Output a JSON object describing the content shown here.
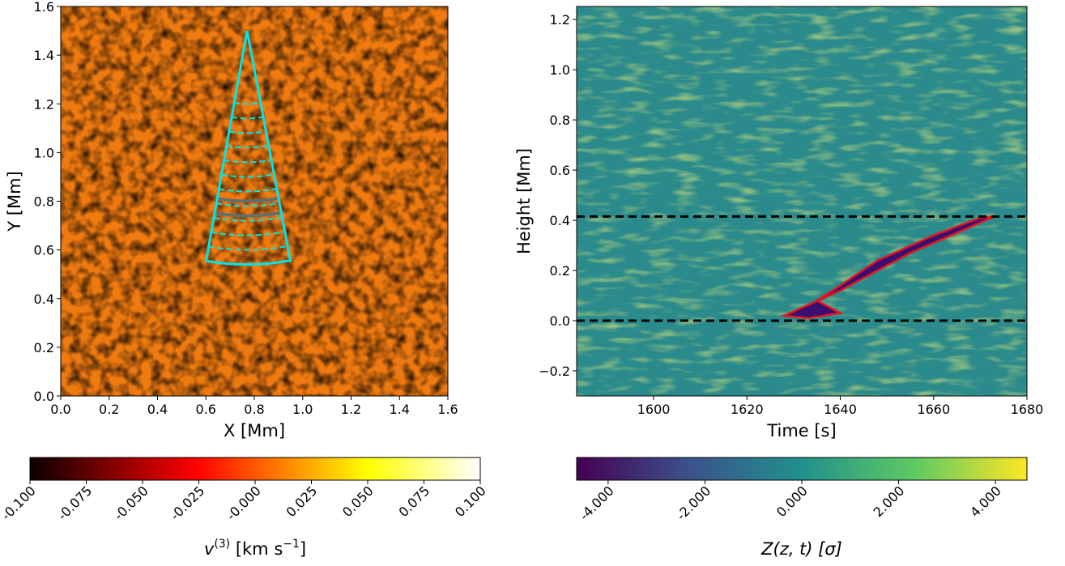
{
  "chart_data": [
    {
      "type": "heatmap",
      "colormap": "hot",
      "xlabel": "X [Mm]",
      "ylabel": "Y [Mm]",
      "xlim": [
        0,
        1.6
      ],
      "ylim": [
        0,
        1.6
      ],
      "xticks": [
        {
          "value": 0,
          "label": "0.0"
        },
        0.2,
        0.4,
        0.6,
        0.8,
        {
          "value": 1,
          "label": "1.0"
        },
        1.2,
        1.4,
        1.6
      ],
      "yticks": [
        {
          "value": 0,
          "label": "0.0"
        },
        0.2,
        0.4,
        0.6,
        0.8,
        {
          "value": 1,
          "label": "1.0"
        },
        1.2,
        1.4,
        1.6
      ],
      "wedge": {
        "color": "#00e5e5",
        "apex": [
          0.77,
          1.5
        ],
        "left": [
          0.6,
          0.55
        ],
        "right": [
          0.95,
          0.55
        ],
        "outer_radius": 0.96,
        "dashed_radii": [
          0.3,
          0.36,
          0.42,
          0.48,
          0.54,
          0.6,
          0.66,
          0.72,
          0.78,
          0.84,
          0.9
        ],
        "gray_radii": [
          0.7,
          0.76
        ]
      },
      "colorbar": {
        "lim": [
          -0.1,
          0.1
        ],
        "ticks": [
          {
            "value": -0.1,
            "label": "-0.100"
          },
          {
            "value": -0.075,
            "label": "-0.075"
          },
          {
            "value": -0.05,
            "label": "-0.050"
          },
          {
            "value": -0.025,
            "label": "-0.025"
          },
          {
            "value": 0,
            "label": "-0.000"
          },
          {
            "value": 0.025,
            "label": "0.025"
          },
          {
            "value": 0.05,
            "label": "0.050"
          },
          {
            "value": 0.075,
            "label": "0.075"
          },
          {
            "value": 0.1,
            "label": "0.100"
          }
        ],
        "label_parts": [
          "v",
          "(3)",
          " [km s",
          "−1",
          "]"
        ]
      }
    },
    {
      "type": "heatmap",
      "colormap": "viridis",
      "xlabel": "Time [s]",
      "ylabel": "Height [Mm]",
      "xlim": [
        1583.5,
        1680
      ],
      "ylim": [
        -0.3,
        1.252
      ],
      "xticks": [
        1600,
        1620,
        1640,
        1660,
        1680
      ],
      "yticks": [
        {
          "value": -0.2,
          "label": "−0.2"
        },
        {
          "value": 0,
          "label": "0.0"
        },
        0.2,
        0.4,
        0.6,
        0.8,
        {
          "value": 1,
          "label": "1.0"
        },
        1.2
      ],
      "hlines": [
        0,
        0.415
      ],
      "contour": {
        "color": "#e8141c",
        "x": [
          1628,
          1640,
          1655,
          1665,
          1673,
          1670,
          1660,
          1648,
          1640,
          1635,
          1640,
          1633,
          1628
        ],
        "y": [
          0.02,
          0.12,
          0.27,
          0.35,
          0.415,
          0.41,
          0.34,
          0.24,
          0.14,
          0.08,
          0.03,
          0.01,
          0.02
        ]
      },
      "colorbar": {
        "lim": [
          -4.65,
          4.65
        ],
        "ticks": [
          {
            "value": -4,
            "label": "-4.000"
          },
          {
            "value": -2,
            "label": "-2.000"
          },
          {
            "value": 0,
            "label": "0.000"
          },
          {
            "value": 2,
            "label": "2.000"
          },
          {
            "value": 4,
            "label": "4.000"
          }
        ],
        "label_parts": [
          "Z(z, t) [σ]"
        ]
      }
    }
  ]
}
